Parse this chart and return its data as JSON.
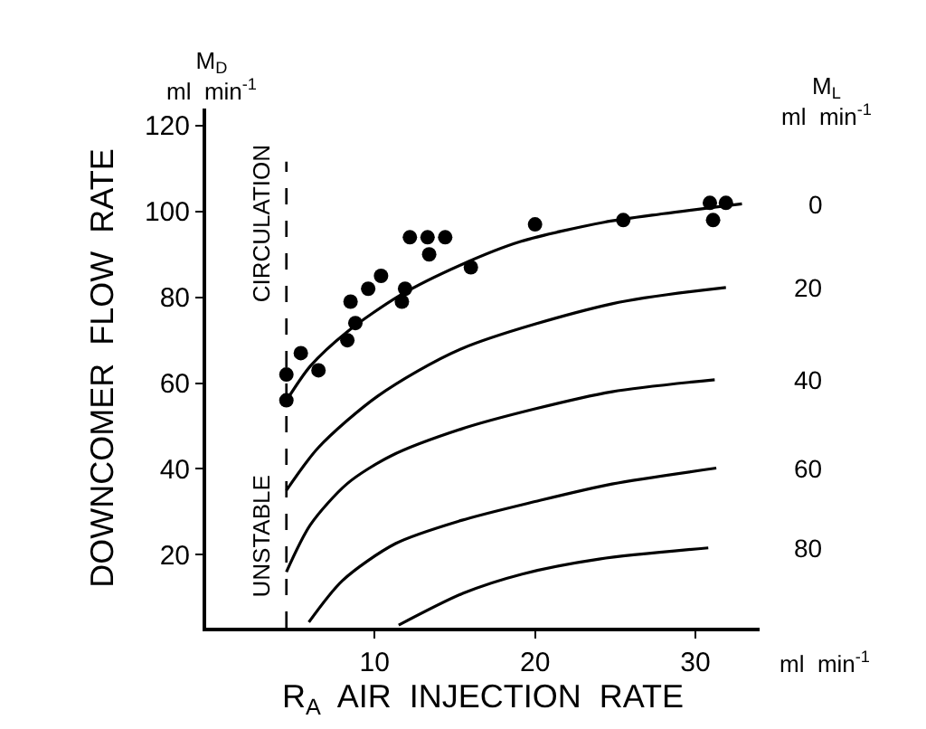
{
  "chart_data": {
    "type": "line",
    "xlabel": "R$_{A}$  AIR  INJECTION  RATE",
    "ylabel": "DOWNCOMER  FLOW  RATE",
    "annotations": [
      "M$_{D}$\nml  min$^{-1}$",
      "UNSTABLE",
      "CIRCULATION",
      "ml  min$^{-1}$",
      "M$_{L}$\nml  min$^{-1}$"
    ],
    "xlim": [
      -0.5,
      34
    ],
    "ylim": [
      3,
      124
    ],
    "xticks": [
      10,
      20,
      30
    ],
    "yticks": [
      20,
      40,
      60,
      80,
      100,
      120
    ],
    "legend": false,
    "ref_lines": [
      {
        "axis": "x",
        "value": 4.5,
        "line_style": "dashed",
        "color": "#000000"
      }
    ],
    "series": [
      {
        "type": "scatter",
        "marker": "circle",
        "color": "#000000",
        "x": [
          4.5,
          4.5,
          5.4,
          6.5,
          8.3,
          8.5,
          8.8,
          9.6,
          10.4,
          11.7,
          11.9,
          12.2,
          13.3,
          13.4,
          14.4,
          16.0,
          20.0,
          25.5,
          30.9,
          31.9,
          31.1
        ],
        "values": [
          62,
          56,
          67,
          63,
          70,
          79,
          74,
          82,
          85,
          79,
          82,
          94,
          94,
          90,
          94,
          87,
          97,
          98,
          102,
          102,
          98
        ]
      },
      {
        "name": "0",
        "color": "#000000",
        "x": [
          4.6,
          6,
          8.3,
          11.6,
          15.4,
          19.1,
          24.3,
          28,
          32.9
        ],
        "values": [
          56.5,
          64,
          72,
          80.5,
          87.6,
          93,
          97.5,
          99.5,
          101.8
        ]
      },
      {
        "name": "20",
        "color": "#000000",
        "x": [
          4.5,
          6.5,
          10.2,
          15.4,
          24.8,
          31.9
        ],
        "values": [
          35,
          45,
          57,
          68,
          78.5,
          82.3
        ]
      },
      {
        "name": "40",
        "color": "#000000",
        "x": [
          4.5,
          6,
          8.3,
          11,
          15.4,
          20,
          24.8,
          31.2
        ],
        "values": [
          16,
          27,
          36.6,
          43,
          49.3,
          54,
          58,
          60.8
        ]
      },
      {
        "name": "60",
        "color": "#000000",
        "x": [
          5.9,
          8,
          11.3,
          15.4,
          20,
          24.8,
          31.3
        ],
        "values": [
          4.3,
          14,
          22.6,
          28,
          32.4,
          36.5,
          40.2
        ]
      },
      {
        "name": "80",
        "color": "#000000",
        "x": [
          11.5,
          15.5,
          19.2,
          24,
          30.8
        ],
        "values": [
          3.6,
          11,
          15.5,
          19,
          21.6
        ]
      }
    ]
  }
}
